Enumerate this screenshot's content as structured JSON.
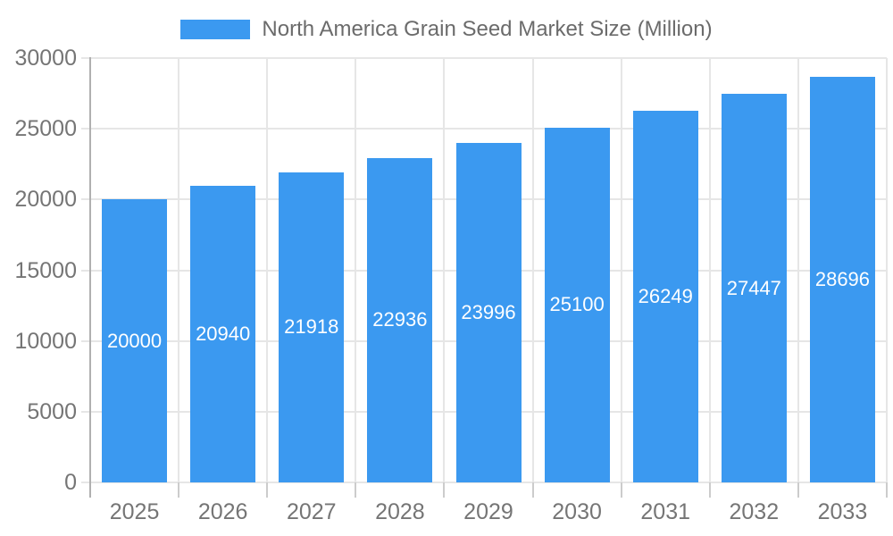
{
  "chart_data": {
    "type": "bar",
    "title": "North America Grain Seed Market Size (Million)",
    "legend": {
      "position": "top-center",
      "label": "North America Grain Seed Market Size (Million)"
    },
    "categories": [
      "2025",
      "2026",
      "2027",
      "2028",
      "2029",
      "2030",
      "2031",
      "2032",
      "2033"
    ],
    "series": [
      {
        "name": "North America Grain Seed Market Size (Million)",
        "values": [
          20000,
          20940,
          21918,
          22936,
          23996,
          25100,
          26249,
          27447,
          28696
        ]
      }
    ],
    "value_labels": "inside-center",
    "xlabel": "",
    "ylabel": "",
    "ylim": [
      0,
      30000
    ],
    "yticks": [
      0,
      5000,
      10000,
      15000,
      20000,
      25000,
      30000
    ],
    "grid": true
  },
  "colors": {
    "bar": "#3b99f0",
    "value_label": "#ffffff",
    "gridline": "#e6e6e6",
    "axis_line": "#b0b0b0",
    "x_tick": "#cccccc",
    "axis_text": "#757575",
    "legend_text": "#6b6b6b",
    "background": "#ffffff"
  }
}
